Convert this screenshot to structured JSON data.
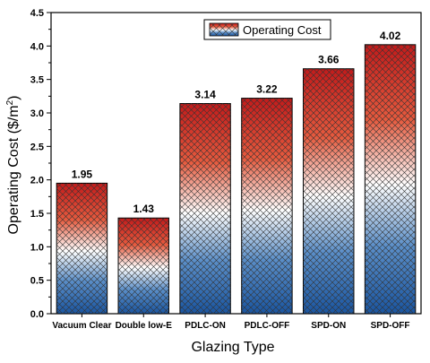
{
  "chart_data": {
    "type": "bar",
    "categories": [
      "Vacuum Clear",
      "Double low-E",
      "PDLC-ON",
      "PDLC-OFF",
      "SPD-ON",
      "SPD-OFF"
    ],
    "values": [
      1.95,
      1.43,
      3.14,
      3.22,
      3.66,
      4.02
    ],
    "value_labels": [
      "1.95",
      "1.43",
      "3.14",
      "3.22",
      "3.66",
      "4.02"
    ],
    "xlabel": "Glazing Type",
    "ylabel_main": "Operating Cost ($/m",
    "ylabel_sup": "2",
    "ylabel_end": ")",
    "ylim": [
      0,
      4.5
    ],
    "yticks": [
      0.0,
      0.5,
      1.0,
      1.5,
      2.0,
      2.5,
      3.0,
      3.5,
      4.0,
      4.5
    ],
    "ytick_labels": [
      "0.0",
      "0.5",
      "1.0",
      "1.5",
      "2.0",
      "2.5",
      "3.0",
      "3.5",
      "4.0",
      "4.5"
    ],
    "legend": {
      "label": "Operating Cost",
      "position": "top-center"
    },
    "grid": false,
    "colors": {
      "top": "#c8201e",
      "middle": "#ffffff",
      "bottom": "#1f5fa8",
      "hatch": "#2a2a2a"
    }
  }
}
